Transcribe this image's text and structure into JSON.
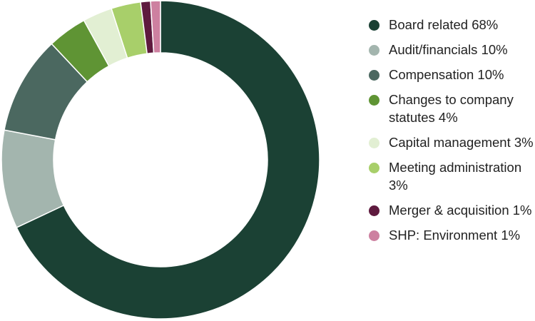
{
  "chart_data": {
    "type": "pie",
    "donut": true,
    "title": "",
    "legend_position": "right",
    "slices": [
      {
        "label": "Board related 68%",
        "value": 68,
        "color": "#1b4134"
      },
      {
        "label": "Audit/financials 10%",
        "value": 10,
        "color": "#a3b5ae"
      },
      {
        "label": "Compensation 10%",
        "value": 10,
        "color": "#4b6860"
      },
      {
        "label": "Changes to company statutes 4%",
        "value": 4,
        "color": "#5f9434"
      },
      {
        "label": "Capital management 3%",
        "value": 3,
        "color": "#e2efd3"
      },
      {
        "label": "Meeting administration 3%",
        "value": 3,
        "color": "#a8cf6a"
      },
      {
        "label": "Merger & acquisition 1%",
        "value": 1,
        "color": "#5e1a3e"
      },
      {
        "label": "SHP: Environment 1%",
        "value": 1,
        "color": "#cd80a0"
      }
    ]
  }
}
